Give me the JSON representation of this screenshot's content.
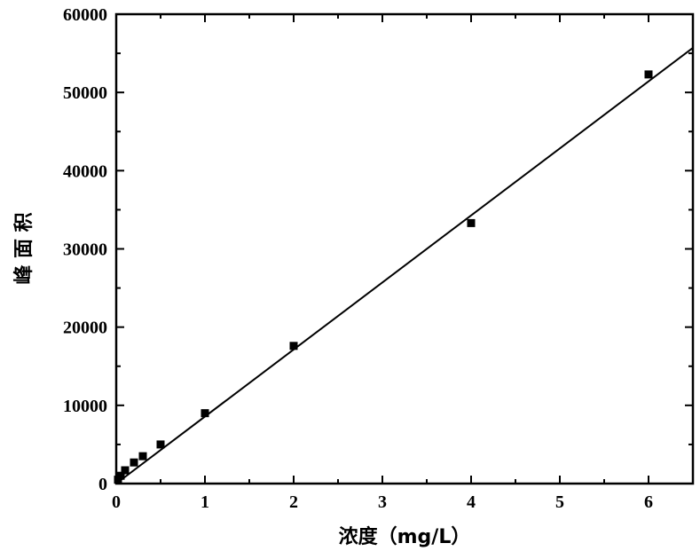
{
  "chart_data": {
    "type": "scatter",
    "xlabel": "浓度（mg/L）",
    "ylabel": "峰 面 积",
    "xlim": [
      0,
      6.5
    ],
    "ylim": [
      0,
      60000
    ],
    "x_ticks": [
      0,
      1,
      2,
      3,
      4,
      5,
      6
    ],
    "y_ticks": [
      0,
      10000,
      20000,
      30000,
      40000,
      50000,
      60000
    ],
    "x_tick_labels": [
      "0",
      "1",
      "2",
      "3",
      "4",
      "5",
      "6"
    ],
    "y_tick_labels": [
      "0",
      "10000",
      "20000",
      "30000",
      "40000",
      "50000",
      "60000"
    ],
    "grid": false,
    "series": [
      {
        "x": [
          0.02,
          0.05,
          0.1,
          0.2,
          0.3,
          0.5,
          1,
          2,
          4,
          6
        ],
        "y": [
          500,
          1000,
          1700,
          2700,
          3500,
          5000,
          9000,
          17600,
          33300,
          52300
        ]
      }
    ],
    "fit_line": {
      "x": [
        0,
        6.5
      ],
      "y": [
        0,
        55700
      ]
    },
    "colors": {
      "marker": "#000000",
      "line": "#000000"
    }
  }
}
